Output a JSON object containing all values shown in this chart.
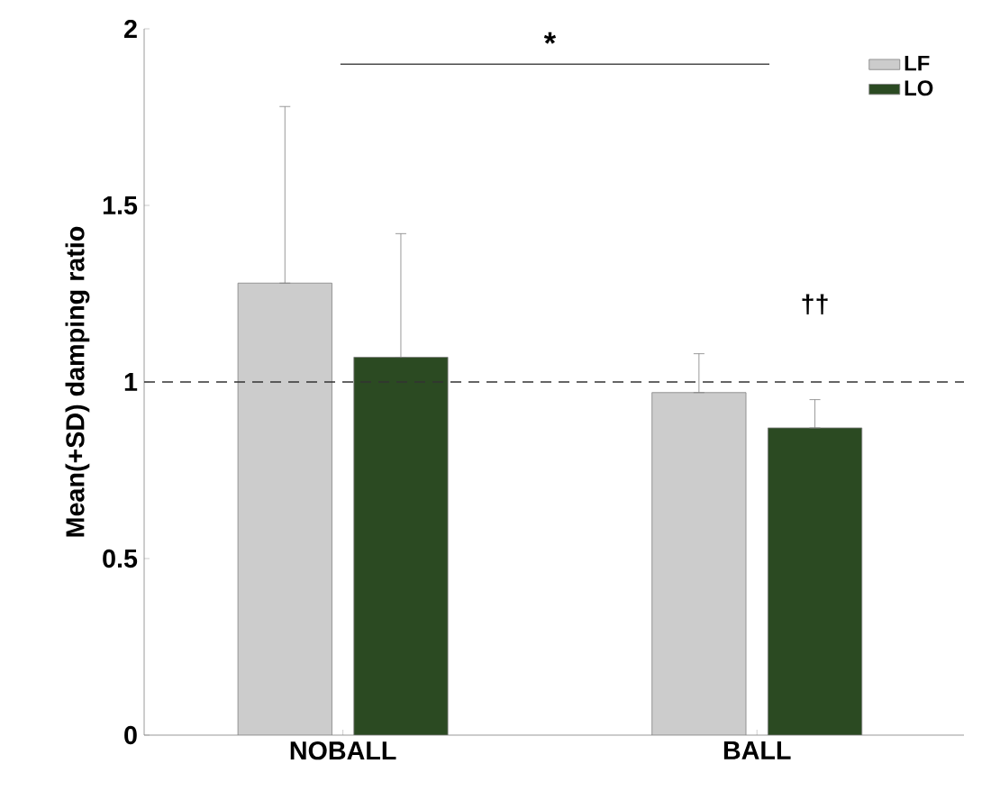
{
  "chart_data": {
    "type": "bar",
    "ylabel": "Mean(+SD) damping ratio",
    "categories": [
      "NOBALL",
      "BALL"
    ],
    "series": [
      {
        "name": "LF",
        "color": "#cccccc",
        "values": [
          1.28,
          0.97
        ],
        "errors": [
          [
            1.28,
            1.78
          ],
          [
            0.97,
            1.08
          ]
        ]
      },
      {
        "name": "LO",
        "color": "#2b4a22",
        "values": [
          1.07,
          0.87
        ],
        "errors": [
          [
            1.07,
            1.42
          ],
          [
            0.87,
            0.95
          ]
        ]
      }
    ],
    "ylim": [
      0,
      2
    ],
    "yticks": [
      0,
      0.5,
      1,
      1.5,
      2
    ],
    "ref_lines": [
      {
        "axis": "y",
        "value": 1,
        "line_style": "dashed",
        "color": "#333333"
      }
    ],
    "annotations": [
      "*",
      "††"
    ],
    "legend": "top right",
    "grid": false
  }
}
